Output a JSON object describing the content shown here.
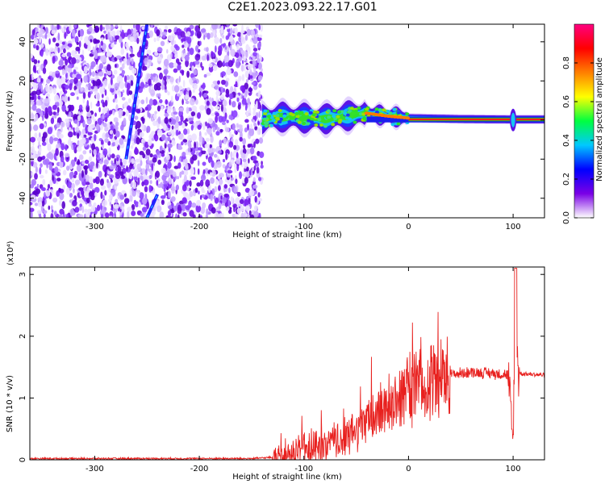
{
  "page": {
    "title": "C2E1.2023.093.22.17.G01"
  },
  "chart_data": [
    {
      "type": "heatmap",
      "xlabel": "Height of straight line (km)",
      "ylabel": "Frequency (Hz)",
      "xlim": [
        -362,
        130
      ],
      "ylim": [
        -50,
        49
      ],
      "xticks": [
        -300,
        -200,
        -100,
        0,
        100
      ],
      "yticks": [
        -40,
        -20,
        0,
        20,
        40
      ],
      "colorbar": {
        "label": "Normalized spectral amplitude",
        "range": [
          0,
          1
        ],
        "ticks": [
          0.0,
          0.2,
          0.4,
          0.6,
          0.8
        ],
        "colormap": "rainbow",
        "colors": [
          "#ffffff",
          "#7a00e6",
          "#0000ff",
          "#00c8ff",
          "#00ff40",
          "#ffff00",
          "#ff8000",
          "#ff0000",
          "#ff0080"
        ]
      },
      "features": {
        "noise_region_x": [
          -362,
          -140
        ],
        "carrier_curve": [
          {
            "x": -140,
            "y": 0.5
          },
          {
            "x": -120,
            "y": 1.5
          },
          {
            "x": -100,
            "y": 1.0
          },
          {
            "x": -80,
            "y": 0.5
          },
          {
            "x": -60,
            "y": 2.0
          },
          {
            "x": -40,
            "y": 3.5
          },
          {
            "x": -20,
            "y": 2.0
          },
          {
            "x": 0,
            "y": 1.0
          },
          {
            "x": 50,
            "y": 0.5
          },
          {
            "x": 100,
            "y": 0.3
          },
          {
            "x": 130,
            "y": 0.3
          }
        ],
        "sweep_lines": [
          {
            "from": {
              "x": -270,
              "y": -20
            },
            "to": {
              "x": -250,
              "y": 49
            }
          },
          {
            "from": {
              "x": -250,
              "y": -50
            },
            "to": {
              "x": -240,
              "y": -38
            }
          }
        ]
      }
    },
    {
      "type": "line",
      "xlabel": "Height of straight line (km)",
      "ylabel": "SNR (10 * v/v)",
      "yexponent": "(x10⁴)",
      "xlim": [
        -362,
        130
      ],
      "ylim": [
        0,
        3.12
      ],
      "xticks": [
        -300,
        -200,
        -100,
        0,
        100
      ],
      "yticks": [
        0,
        1,
        2,
        3
      ],
      "series": [
        {
          "color": "#e8201e",
          "points": [
            {
              "x": -362,
              "y": 0.02
            },
            {
              "x": -300,
              "y": 0.02
            },
            {
              "x": -200,
              "y": 0.02
            },
            {
              "x": -150,
              "y": 0.02
            },
            {
              "x": -120,
              "y": 0.05
            },
            {
              "x": -100,
              "y": 0.15
            },
            {
              "x": -80,
              "y": 0.22
            },
            {
              "x": -60,
              "y": 0.35
            },
            {
              "x": -40,
              "y": 0.6
            },
            {
              "x": -20,
              "y": 0.9
            },
            {
              "x": 0,
              "y": 1.1
            },
            {
              "x": 20,
              "y": 1.27
            },
            {
              "x": 40,
              "y": 1.38
            },
            {
              "x": 60,
              "y": 1.42
            },
            {
              "x": 80,
              "y": 1.4
            },
            {
              "x": 95,
              "y": 1.38
            },
            {
              "x": 100,
              "y": 0.2
            },
            {
              "x": 102,
              "y": 3.1
            },
            {
              "x": 105,
              "y": 1.4
            },
            {
              "x": 130,
              "y": 1.37
            }
          ]
        }
      ]
    }
  ]
}
